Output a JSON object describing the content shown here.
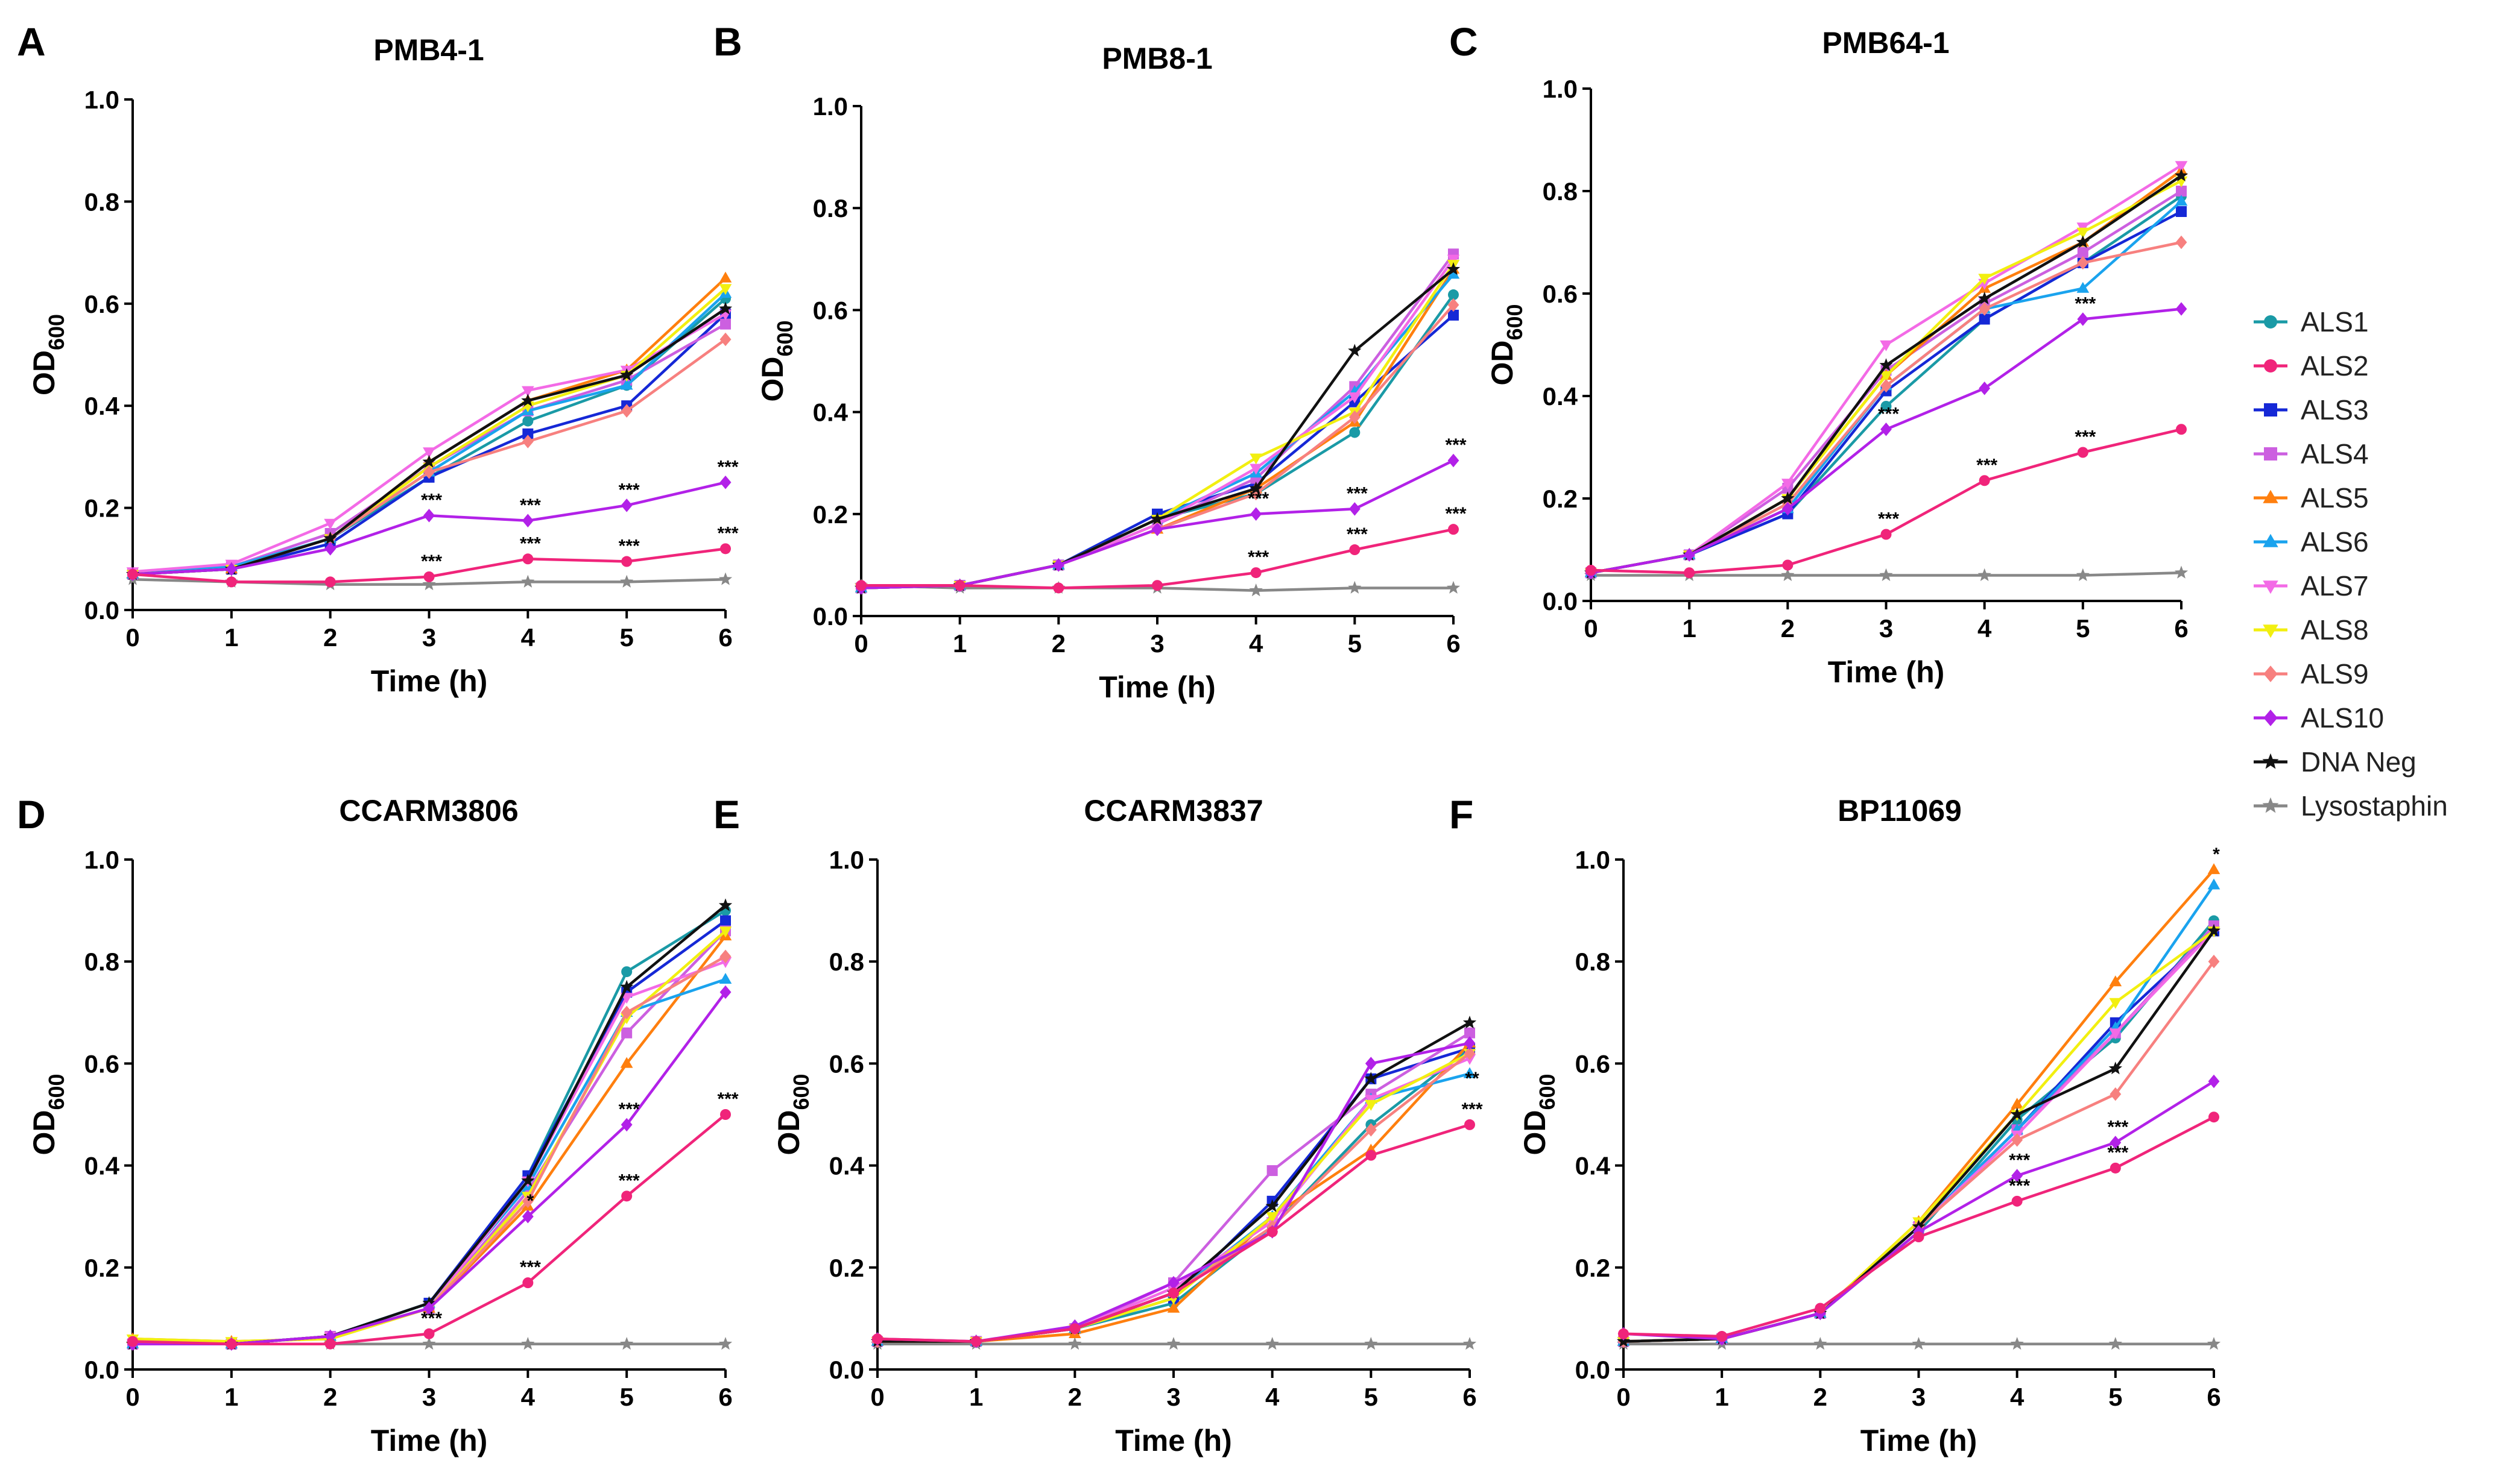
{
  "chart_data": {
    "type": "line",
    "x": [
      0,
      1,
      2,
      3,
      4,
      5,
      6
    ],
    "xlabel": "Time (h)",
    "ylabel": "OD",
    "ylabel_sub": "600",
    "ylim": [
      0,
      1.0
    ],
    "yticks": [
      "0.0",
      "0.2",
      "0.4",
      "0.6",
      "0.8",
      "1.0"
    ],
    "xticks": [
      "0",
      "1",
      "2",
      "3",
      "4",
      "5",
      "6"
    ],
    "legend": [
      {
        "name": "ALS1",
        "color": "#1a9aa6",
        "marker": "circle"
      },
      {
        "name": "ALS2",
        "color": "#f0247a",
        "marker": "circle"
      },
      {
        "name": "ALS3",
        "color": "#1528d6",
        "marker": "square"
      },
      {
        "name": "ALS4",
        "color": "#cc5fe0",
        "marker": "square"
      },
      {
        "name": "ALS5",
        "color": "#ff7f0e",
        "marker": "triangle-up"
      },
      {
        "name": "ALS6",
        "color": "#1aa3ee",
        "marker": "triangle-up"
      },
      {
        "name": "ALS7",
        "color": "#f36ae6",
        "marker": "triangle-down"
      },
      {
        "name": "ALS8",
        "color": "#f2ef10",
        "marker": "triangle-down"
      },
      {
        "name": "ALS9",
        "color": "#f7807f",
        "marker": "diamond"
      },
      {
        "name": "ALS10",
        "color": "#b221e8",
        "marker": "diamond"
      },
      {
        "name": "DNA Neg",
        "color": "#111111",
        "marker": "star"
      },
      {
        "name": "Lysostaphin",
        "color": "#888888",
        "marker": "star"
      }
    ],
    "panels": [
      {
        "letter": "A",
        "title": "PMB4-1",
        "series": {
          "ALS1": [
            0.07,
            0.08,
            0.14,
            0.26,
            0.37,
            0.44,
            0.61
          ],
          "ALS2": [
            0.07,
            0.055,
            0.055,
            0.065,
            0.1,
            0.095,
            0.12
          ],
          "ALS3": [
            0.07,
            0.08,
            0.13,
            0.26,
            0.345,
            0.4,
            0.58
          ],
          "ALS4": [
            0.07,
            0.085,
            0.15,
            0.28,
            0.39,
            0.45,
            0.56
          ],
          "ALS5": [
            0.07,
            0.08,
            0.14,
            0.29,
            0.41,
            0.47,
            0.65
          ],
          "ALS6": [
            0.07,
            0.085,
            0.14,
            0.27,
            0.39,
            0.44,
            0.62
          ],
          "ALS7": [
            0.075,
            0.09,
            0.17,
            0.31,
            0.43,
            0.47,
            0.58
          ],
          "ALS8": [
            0.07,
            0.08,
            0.14,
            0.28,
            0.4,
            0.46,
            0.63
          ],
          "ALS9": [
            0.07,
            0.08,
            0.14,
            0.27,
            0.33,
            0.39,
            0.53
          ],
          "ALS10": [
            0.07,
            0.08,
            0.12,
            0.185,
            0.175,
            0.205,
            0.25
          ],
          "DNA Neg": [
            0.07,
            0.08,
            0.14,
            0.29,
            0.41,
            0.46,
            0.59
          ],
          "Lysostaphin": [
            0.06,
            0.055,
            0.05,
            0.05,
            0.055,
            0.055,
            0.06
          ]
        },
        "annotations": [
          {
            "x": 3,
            "y": 0.185,
            "text": "***"
          },
          {
            "x": 4,
            "y": 0.175,
            "text": "***"
          },
          {
            "x": 5,
            "y": 0.205,
            "text": "***"
          },
          {
            "x": 6,
            "y": 0.25,
            "text": "***"
          },
          {
            "x": 3,
            "y": 0.065,
            "text": "***"
          },
          {
            "x": 4,
            "y": 0.1,
            "text": "***"
          },
          {
            "x": 5,
            "y": 0.095,
            "text": "***"
          },
          {
            "x": 6,
            "y": 0.12,
            "text": "***"
          }
        ]
      },
      {
        "letter": "B",
        "title": "PMB8-1",
        "series": {
          "ALS1": [
            0.055,
            0.06,
            0.1,
            0.19,
            0.24,
            0.36,
            0.63
          ],
          "ALS2": [
            0.06,
            0.06,
            0.055,
            0.06,
            0.085,
            0.13,
            0.17
          ],
          "ALS3": [
            0.055,
            0.06,
            0.1,
            0.2,
            0.26,
            0.42,
            0.59
          ],
          "ALS4": [
            0.055,
            0.06,
            0.1,
            0.18,
            0.27,
            0.45,
            0.71
          ],
          "ALS5": [
            0.055,
            0.06,
            0.1,
            0.17,
            0.25,
            0.38,
            0.68
          ],
          "ALS6": [
            0.055,
            0.06,
            0.1,
            0.19,
            0.28,
            0.44,
            0.67
          ],
          "ALS7": [
            0.055,
            0.06,
            0.1,
            0.18,
            0.29,
            0.43,
            0.7
          ],
          "ALS8": [
            0.055,
            0.06,
            0.1,
            0.19,
            0.31,
            0.4,
            0.69
          ],
          "ALS9": [
            0.055,
            0.06,
            0.1,
            0.17,
            0.24,
            0.39,
            0.61
          ],
          "ALS10": [
            0.055,
            0.06,
            0.1,
            0.17,
            0.2,
            0.21,
            0.305
          ],
          "DNA Neg": [
            0.055,
            0.06,
            0.1,
            0.19,
            0.25,
            0.52,
            0.68
          ],
          "Lysostaphin": [
            0.06,
            0.055,
            0.055,
            0.055,
            0.05,
            0.055,
            0.055
          ]
        },
        "annotations": [
          {
            "x": 4,
            "y": 0.2,
            "text": "***"
          },
          {
            "x": 5,
            "y": 0.21,
            "text": "***"
          },
          {
            "x": 6,
            "y": 0.305,
            "text": "***"
          },
          {
            "x": 4,
            "y": 0.085,
            "text": "***"
          },
          {
            "x": 5,
            "y": 0.13,
            "text": "***"
          },
          {
            "x": 6,
            "y": 0.17,
            "text": "***"
          }
        ]
      },
      {
        "letter": "C",
        "title": "PMB64-1",
        "series": {
          "ALS1": [
            0.055,
            0.09,
            0.17,
            0.38,
            0.55,
            0.66,
            0.79
          ],
          "ALS2": [
            0.06,
            0.055,
            0.07,
            0.13,
            0.235,
            0.29,
            0.335
          ],
          "ALS3": [
            0.055,
            0.09,
            0.17,
            0.41,
            0.55,
            0.66,
            0.76
          ],
          "ALS4": [
            0.055,
            0.09,
            0.22,
            0.45,
            0.58,
            0.68,
            0.8
          ],
          "ALS5": [
            0.055,
            0.09,
            0.2,
            0.44,
            0.61,
            0.7,
            0.84
          ],
          "ALS6": [
            0.055,
            0.09,
            0.18,
            0.42,
            0.57,
            0.61,
            0.78
          ],
          "ALS7": [
            0.055,
            0.09,
            0.23,
            0.5,
            0.62,
            0.73,
            0.85
          ],
          "ALS8": [
            0.055,
            0.09,
            0.2,
            0.44,
            0.63,
            0.72,
            0.82
          ],
          "ALS9": [
            0.055,
            0.09,
            0.19,
            0.42,
            0.57,
            0.66,
            0.7
          ],
          "ALS10": [
            0.055,
            0.09,
            0.18,
            0.335,
            0.415,
            0.55,
            0.57
          ],
          "DNA Neg": [
            0.055,
            0.09,
            0.2,
            0.46,
            0.59,
            0.7,
            0.83
          ],
          "Lysostaphin": [
            0.05,
            0.05,
            0.05,
            0.05,
            0.05,
            0.05,
            0.055
          ]
        },
        "annotations": [
          {
            "x": 3,
            "y": 0.335,
            "text": "***"
          },
          {
            "x": 5,
            "y": 0.55,
            "text": "***"
          },
          {
            "x": 3,
            "y": 0.13,
            "text": "***"
          },
          {
            "x": 4,
            "y": 0.235,
            "text": "***"
          },
          {
            "x": 5,
            "y": 0.29,
            "text": "***"
          }
        ]
      },
      {
        "letter": "D",
        "title": "CCARM3806",
        "series": {
          "ALS1": [
            0.05,
            0.05,
            0.065,
            0.13,
            0.38,
            0.78,
            0.9
          ],
          "ALS2": [
            0.055,
            0.05,
            0.05,
            0.07,
            0.17,
            0.34,
            0.5
          ],
          "ALS3": [
            0.05,
            0.05,
            0.065,
            0.13,
            0.38,
            0.74,
            0.88
          ],
          "ALS4": [
            0.05,
            0.05,
            0.065,
            0.12,
            0.35,
            0.66,
            0.86
          ],
          "ALS5": [
            0.06,
            0.055,
            0.06,
            0.12,
            0.32,
            0.6,
            0.85
          ],
          "ALS6": [
            0.05,
            0.05,
            0.065,
            0.13,
            0.36,
            0.7,
            0.765
          ],
          "ALS7": [
            0.05,
            0.05,
            0.065,
            0.12,
            0.37,
            0.73,
            0.8
          ],
          "ALS8": [
            0.06,
            0.055,
            0.06,
            0.12,
            0.34,
            0.69,
            0.86
          ],
          "ALS9": [
            0.05,
            0.05,
            0.065,
            0.12,
            0.33,
            0.7,
            0.81
          ],
          "ALS10": [
            0.05,
            0.05,
            0.065,
            0.12,
            0.3,
            0.48,
            0.74
          ],
          "DNA Neg": [
            0.05,
            0.05,
            0.065,
            0.13,
            0.37,
            0.75,
            0.91
          ],
          "Lysostaphin": [
            0.05,
            0.05,
            0.05,
            0.05,
            0.05,
            0.05,
            0.05
          ]
        },
        "annotations": [
          {
            "x": 3,
            "y": 0.07,
            "text": "***"
          },
          {
            "x": 4,
            "y": 0.3,
            "text": "*"
          },
          {
            "x": 4,
            "y": 0.17,
            "text": "***"
          },
          {
            "x": 5,
            "y": 0.48,
            "text": "***"
          },
          {
            "x": 5,
            "y": 0.34,
            "text": "***"
          },
          {
            "x": 6,
            "y": 0.5,
            "text": "***"
          }
        ]
      },
      {
        "letter": "E",
        "title": "CCARM3837",
        "series": {
          "ALS1": [
            0.055,
            0.055,
            0.08,
            0.13,
            0.28,
            0.48,
            0.63
          ],
          "ALS2": [
            0.06,
            0.055,
            0.08,
            0.15,
            0.27,
            0.42,
            0.48
          ],
          "ALS3": [
            0.055,
            0.055,
            0.08,
            0.14,
            0.33,
            0.57,
            0.63
          ],
          "ALS4": [
            0.055,
            0.055,
            0.08,
            0.17,
            0.39,
            0.54,
            0.66
          ],
          "ALS5": [
            0.055,
            0.055,
            0.07,
            0.12,
            0.3,
            0.43,
            0.64
          ],
          "ALS6": [
            0.055,
            0.055,
            0.08,
            0.15,
            0.3,
            0.53,
            0.58
          ],
          "ALS7": [
            0.055,
            0.055,
            0.08,
            0.16,
            0.29,
            0.53,
            0.61
          ],
          "ALS8": [
            0.055,
            0.055,
            0.08,
            0.14,
            0.3,
            0.52,
            0.62
          ],
          "ALS9": [
            0.055,
            0.055,
            0.08,
            0.15,
            0.28,
            0.47,
            0.62
          ],
          "ALS10": [
            0.06,
            0.055,
            0.085,
            0.17,
            0.27,
            0.6,
            0.64
          ],
          "DNA Neg": [
            0.055,
            0.055,
            0.08,
            0.15,
            0.32,
            0.57,
            0.68
          ],
          "Lysostaphin": [
            0.05,
            0.05,
            0.05,
            0.05,
            0.05,
            0.05,
            0.05
          ]
        },
        "annotations": [
          {
            "x": 6,
            "y": 0.54,
            "text": "**"
          },
          {
            "x": 6,
            "y": 0.48,
            "text": "***"
          }
        ]
      },
      {
        "letter": "F",
        "title": "BP11069",
        "series": {
          "ALS1": [
            0.055,
            0.06,
            0.11,
            0.27,
            0.49,
            0.65,
            0.88
          ],
          "ALS2": [
            0.07,
            0.065,
            0.12,
            0.26,
            0.33,
            0.395,
            0.495
          ],
          "ALS3": [
            0.055,
            0.06,
            0.11,
            0.28,
            0.47,
            0.68,
            0.86
          ],
          "ALS4": [
            0.055,
            0.06,
            0.11,
            0.28,
            0.47,
            0.66,
            0.87
          ],
          "ALS5": [
            0.055,
            0.06,
            0.11,
            0.29,
            0.52,
            0.76,
            0.98
          ],
          "ALS6": [
            0.055,
            0.06,
            0.11,
            0.28,
            0.47,
            0.67,
            0.95
          ],
          "ALS7": [
            0.055,
            0.06,
            0.11,
            0.28,
            0.46,
            0.66,
            0.86
          ],
          "ALS8": [
            0.055,
            0.06,
            0.11,
            0.29,
            0.5,
            0.72,
            0.86
          ],
          "ALS9": [
            0.055,
            0.06,
            0.11,
            0.28,
            0.45,
            0.54,
            0.8
          ],
          "ALS10": [
            0.07,
            0.06,
            0.11,
            0.27,
            0.38,
            0.445,
            0.565
          ],
          "DNA Neg": [
            0.055,
            0.06,
            0.11,
            0.28,
            0.5,
            0.59,
            0.86
          ],
          "Lysostaphin": [
            0.05,
            0.05,
            0.05,
            0.05,
            0.05,
            0.05,
            0.05
          ]
        },
        "annotations": [
          {
            "x": 4,
            "y": 0.38,
            "text": "***"
          },
          {
            "x": 4,
            "y": 0.33,
            "text": "***"
          },
          {
            "x": 5,
            "y": 0.445,
            "text": "***"
          },
          {
            "x": 5,
            "y": 0.395,
            "text": "***"
          },
          {
            "x": 6,
            "y": 0.98,
            "text": "*"
          }
        ]
      }
    ]
  }
}
